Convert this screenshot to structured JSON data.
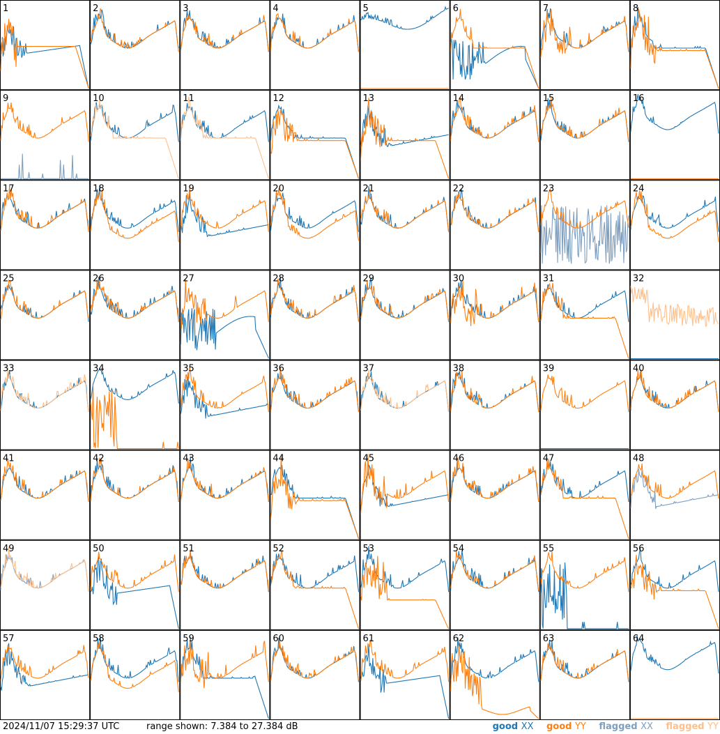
{
  "header": {
    "timestamp": "2024/11/07 15:29:37 UTC",
    "range_label": "range shown: 7.384 to 27.384 dB"
  },
  "legend": [
    {
      "status": "good",
      "pol": "XX",
      "color": "#1f77b4"
    },
    {
      "status": "good",
      "pol": "YY",
      "color": "#ff7f0e"
    },
    {
      "status": "flagged",
      "pol": "XX",
      "color": "#7f9fbf"
    },
    {
      "status": "flagged",
      "pol": "YY",
      "color": "#ffbf8a"
    }
  ],
  "chart_data": {
    "type": "line",
    "ylim": [
      7.384,
      27.384
    ],
    "units": "dB",
    "grid": "8x8 small multiples",
    "panel_labels": [
      "1",
      "2",
      "3",
      "4",
      "5",
      "6",
      "7",
      "8",
      "9",
      "10",
      "11",
      "12",
      "13",
      "14",
      "15",
      "16",
      "17",
      "18",
      "19",
      "20",
      "21",
      "22",
      "23",
      "24",
      "25",
      "26",
      "27",
      "28",
      "29",
      "30",
      "31",
      "32",
      "33",
      "34",
      "35",
      "36",
      "37",
      "38",
      "39",
      "40",
      "41",
      "42",
      "43",
      "44",
      "45",
      "46",
      "47",
      "48",
      "49",
      "50",
      "51",
      "52",
      "53",
      "54",
      "55",
      "56",
      "57",
      "58",
      "59",
      "60",
      "61",
      "62",
      "63",
      "64"
    ],
    "panels": [
      {
        "id": 1,
        "xx": {
          "s": "good",
          "k": "sag_drop"
        },
        "yy": {
          "s": "good",
          "k": "dip_droop"
        }
      },
      {
        "id": 2,
        "xx": {
          "s": "good",
          "k": "normal"
        },
        "yy": {
          "s": "good",
          "k": "normal"
        }
      },
      {
        "id": 3,
        "xx": {
          "s": "good",
          "k": "normal"
        },
        "yy": {
          "s": "good",
          "k": "normal"
        }
      },
      {
        "id": 4,
        "xx": {
          "s": "good",
          "k": "normal"
        },
        "yy": {
          "s": "good",
          "k": "normal"
        }
      },
      {
        "id": 5,
        "xx": {
          "s": "good",
          "k": "high_valley"
        },
        "yy": {
          "s": "good",
          "k": "floor"
        }
      },
      {
        "id": 6,
        "xx": {
          "s": "good",
          "k": "deep_droop"
        },
        "yy": {
          "s": "good",
          "k": "droop"
        }
      },
      {
        "id": 7,
        "xx": {
          "s": "good",
          "k": "normal"
        },
        "yy": {
          "s": "good",
          "k": "spiky"
        }
      },
      {
        "id": 8,
        "xx": {
          "s": "good",
          "k": "droop"
        },
        "yy": {
          "s": "good",
          "k": "spiky_droop"
        }
      },
      {
        "id": 9,
        "xx": {
          "s": "flagged",
          "k": "sparse"
        },
        "yy": {
          "s": "good",
          "k": "normal"
        }
      },
      {
        "id": 10,
        "xx": {
          "s": "good",
          "k": "normal"
        },
        "yy": {
          "s": "flagged",
          "k": "droop"
        }
      },
      {
        "id": 11,
        "xx": {
          "s": "good",
          "k": "normal"
        },
        "yy": {
          "s": "flagged",
          "k": "droop"
        }
      },
      {
        "id": 12,
        "xx": {
          "s": "good",
          "k": "droop"
        },
        "yy": {
          "s": "good",
          "k": "spiky_droop"
        }
      },
      {
        "id": 13,
        "xx": {
          "s": "good",
          "k": "sag"
        },
        "yy": {
          "s": "good",
          "k": "spiky_droop"
        }
      },
      {
        "id": 14,
        "xx": {
          "s": "good",
          "k": "normal"
        },
        "yy": {
          "s": "good",
          "k": "normal"
        }
      },
      {
        "id": 15,
        "xx": {
          "s": "good",
          "k": "normal"
        },
        "yy": {
          "s": "good",
          "k": "normal"
        }
      },
      {
        "id": 16,
        "xx": {
          "s": "good",
          "k": "high"
        },
        "yy": {
          "s": "good",
          "k": "floor"
        }
      },
      {
        "id": 17,
        "xx": {
          "s": "good",
          "k": "normal"
        },
        "yy": {
          "s": "good",
          "k": "normal"
        }
      },
      {
        "id": 18,
        "xx": {
          "s": "good",
          "k": "normal"
        },
        "yy": {
          "s": "good",
          "k": "lowmid"
        }
      },
      {
        "id": 19,
        "xx": {
          "s": "good",
          "k": "sag"
        },
        "yy": {
          "s": "good",
          "k": "normal"
        }
      },
      {
        "id": 20,
        "xx": {
          "s": "good",
          "k": "normal"
        },
        "yy": {
          "s": "good",
          "k": "lowmid"
        }
      },
      {
        "id": 21,
        "xx": {
          "s": "good",
          "k": "normal"
        },
        "yy": {
          "s": "good",
          "k": "normal"
        }
      },
      {
        "id": 22,
        "xx": {
          "s": "good",
          "k": "normal"
        },
        "yy": {
          "s": "good",
          "k": "normal"
        }
      },
      {
        "id": 23,
        "xx": {
          "s": "flagged",
          "k": "noise"
        },
        "yy": {
          "s": "good",
          "k": "normal"
        }
      },
      {
        "id": 24,
        "xx": {
          "s": "good",
          "k": "normal"
        },
        "yy": {
          "s": "good",
          "k": "lowmid"
        }
      },
      {
        "id": 25,
        "xx": {
          "s": "good",
          "k": "normal"
        },
        "yy": {
          "s": "good",
          "k": "normal"
        }
      },
      {
        "id": 26,
        "xx": {
          "s": "good",
          "k": "normal"
        },
        "yy": {
          "s": "good",
          "k": "normal"
        }
      },
      {
        "id": 27,
        "xx": {
          "s": "good",
          "k": "deep_droop"
        },
        "yy": {
          "s": "good",
          "k": "spiky"
        }
      },
      {
        "id": 28,
        "xx": {
          "s": "good",
          "k": "normal"
        },
        "yy": {
          "s": "good",
          "k": "normal"
        }
      },
      {
        "id": 29,
        "xx": {
          "s": "good",
          "k": "normal"
        },
        "yy": {
          "s": "good",
          "k": "normal"
        }
      },
      {
        "id": 30,
        "xx": {
          "s": "good",
          "k": "normal"
        },
        "yy": {
          "s": "good",
          "k": "spiky"
        }
      },
      {
        "id": 31,
        "xx": {
          "s": "good",
          "k": "normal"
        },
        "yy": {
          "s": "good",
          "k": "droop"
        }
      },
      {
        "id": 32,
        "xx": {
          "s": "good",
          "k": "floor"
        },
        "yy": {
          "s": "flagged",
          "k": "noisy_high"
        }
      },
      {
        "id": 33,
        "xx": {
          "s": "good",
          "k": "normal"
        },
        "yy": {
          "s": "flagged",
          "k": "normal"
        }
      },
      {
        "id": 34,
        "xx": {
          "s": "good",
          "k": "high"
        },
        "yy": {
          "s": "good",
          "k": "bars"
        }
      },
      {
        "id": 35,
        "xx": {
          "s": "good",
          "k": "sag"
        },
        "yy": {
          "s": "good",
          "k": "normal"
        }
      },
      {
        "id": 36,
        "xx": {
          "s": "good",
          "k": "normal"
        },
        "yy": {
          "s": "good",
          "k": "normal"
        }
      },
      {
        "id": 37,
        "xx": {
          "s": "good",
          "k": "normal"
        },
        "yy": {
          "s": "flagged",
          "k": "normal"
        }
      },
      {
        "id": 38,
        "xx": {
          "s": "good",
          "k": "normal"
        },
        "yy": {
          "s": "good",
          "k": "normal"
        }
      },
      {
        "id": 39,
        "xx": {
          "s": "good",
          "k": "floor"
        },
        "yy": {
          "s": "good",
          "k": "normal"
        }
      },
      {
        "id": 40,
        "xx": {
          "s": "good",
          "k": "normal"
        },
        "yy": {
          "s": "good",
          "k": "normal"
        }
      },
      {
        "id": 41,
        "xx": {
          "s": "good",
          "k": "normal"
        },
        "yy": {
          "s": "good",
          "k": "normal"
        }
      },
      {
        "id": 42,
        "xx": {
          "s": "good",
          "k": "normal"
        },
        "yy": {
          "s": "good",
          "k": "normal"
        }
      },
      {
        "id": 43,
        "xx": {
          "s": "good",
          "k": "normal"
        },
        "yy": {
          "s": "good",
          "k": "normal"
        }
      },
      {
        "id": 44,
        "xx": {
          "s": "good",
          "k": "droop"
        },
        "yy": {
          "s": "good",
          "k": "spiky_droop"
        }
      },
      {
        "id": 45,
        "xx": {
          "s": "good",
          "k": "sag"
        },
        "yy": {
          "s": "good",
          "k": "spiky"
        }
      },
      {
        "id": 46,
        "xx": {
          "s": "good",
          "k": "normal"
        },
        "yy": {
          "s": "good",
          "k": "normal"
        }
      },
      {
        "id": 47,
        "xx": {
          "s": "good",
          "k": "normal"
        },
        "yy": {
          "s": "good",
          "k": "droop"
        }
      },
      {
        "id": 48,
        "xx": {
          "s": "flagged",
          "k": "sag"
        },
        "yy": {
          "s": "good",
          "k": "normal"
        }
      },
      {
        "id": 49,
        "xx": {
          "s": "flagged",
          "k": "normal"
        },
        "yy": {
          "s": "flagged",
          "k": "normal"
        }
      },
      {
        "id": 50,
        "xx": {
          "s": "good",
          "k": "sag_drop"
        },
        "yy": {
          "s": "good",
          "k": "normal"
        }
      },
      {
        "id": 51,
        "xx": {
          "s": "good",
          "k": "normal"
        },
        "yy": {
          "s": "good",
          "k": "normal"
        }
      },
      {
        "id": 52,
        "xx": {
          "s": "good",
          "k": "normal"
        },
        "yy": {
          "s": "good",
          "k": "droop"
        }
      },
      {
        "id": 53,
        "xx": {
          "s": "good",
          "k": "normal"
        },
        "yy": {
          "s": "good",
          "k": "sag_droop"
        }
      },
      {
        "id": 54,
        "xx": {
          "s": "good",
          "k": "normal"
        },
        "yy": {
          "s": "good",
          "k": "normal"
        }
      },
      {
        "id": 55,
        "xx": {
          "s": "good",
          "k": "bars"
        },
        "yy": {
          "s": "good",
          "k": "normal"
        }
      },
      {
        "id": 56,
        "xx": {
          "s": "good",
          "k": "normal"
        },
        "yy": {
          "s": "good",
          "k": "spiky_droop"
        }
      },
      {
        "id": 57,
        "xx": {
          "s": "good",
          "k": "sag"
        },
        "yy": {
          "s": "good",
          "k": "normal"
        }
      },
      {
        "id": 58,
        "xx": {
          "s": "good",
          "k": "normal"
        },
        "yy": {
          "s": "good",
          "k": "lowmid"
        }
      },
      {
        "id": 59,
        "xx": {
          "s": "good",
          "k": "droop"
        },
        "yy": {
          "s": "good",
          "k": "spiky"
        }
      },
      {
        "id": 60,
        "xx": {
          "s": "good",
          "k": "normal"
        },
        "yy": {
          "s": "good",
          "k": "normal"
        }
      },
      {
        "id": 61,
        "xx": {
          "s": "good",
          "k": "sag_drop"
        },
        "yy": {
          "s": "good",
          "k": "normal"
        }
      },
      {
        "id": 62,
        "xx": {
          "s": "good",
          "k": "normal"
        },
        "yy": {
          "s": "good",
          "k": "bars_low"
        }
      },
      {
        "id": 63,
        "xx": {
          "s": "good",
          "k": "normal"
        },
        "yy": {
          "s": "good",
          "k": "normal"
        }
      },
      {
        "id": 64,
        "xx": {
          "s": "good",
          "k": "high"
        },
        "yy": {
          "s": "good",
          "k": "floor"
        }
      }
    ]
  }
}
